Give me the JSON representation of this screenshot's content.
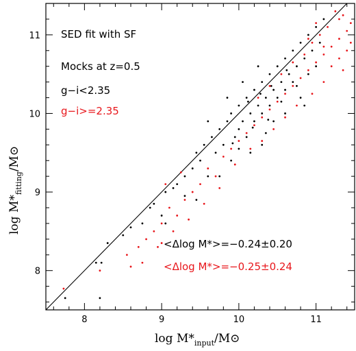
{
  "chart_data": {
    "type": "scatter",
    "xlabel": {
      "main": "log M*",
      "sub": "input",
      "tail": "/M⊙"
    },
    "ylabel": {
      "main": "log M*",
      "sub": "fitting",
      "tail": "/M⊙"
    },
    "xlim": [
      7.5,
      11.5
    ],
    "ylim": [
      7.5,
      11.4
    ],
    "xticks": [
      "8",
      "9",
      "10",
      "11"
    ],
    "yticks": [
      "8",
      "9",
      "10",
      "11"
    ],
    "one_to_one_line": true,
    "annotations": {
      "title": "SED fit with SF",
      "subtitle": "Mocks at z=0.5",
      "legend_black": "g−i<2.35",
      "legend_red": "g−i>=2.35",
      "stat_black": "<Δlog M*>=−0.24±0.20",
      "stat_red": "<Δlog M*>=−0.25±0.24"
    },
    "colors": {
      "black": "#000000",
      "red": "#e8161b"
    },
    "series": [
      {
        "name": "g−i<2.35",
        "color": "#000000",
        "points": [
          [
            7.75,
            7.65
          ],
          [
            8.2,
            7.65
          ],
          [
            8.15,
            8.1
          ],
          [
            8.22,
            8.1
          ],
          [
            8.3,
            8.35
          ],
          [
            8.5,
            8.45
          ],
          [
            8.6,
            8.55
          ],
          [
            8.75,
            8.6
          ],
          [
            8.9,
            8.85
          ],
          [
            9.0,
            8.7
          ],
          [
            9.05,
            9.0
          ],
          [
            9.2,
            9.1
          ],
          [
            9.3,
            9.2
          ],
          [
            9.4,
            9.3
          ],
          [
            9.45,
            8.9
          ],
          [
            9.5,
            9.4
          ],
          [
            9.55,
            9.6
          ],
          [
            9.6,
            9.2
          ],
          [
            9.65,
            9.7
          ],
          [
            9.7,
            9.5
          ],
          [
            9.75,
            9.8
          ],
          [
            9.8,
            9.6
          ],
          [
            9.85,
            9.9
          ],
          [
            9.9,
            10.0
          ],
          [
            9.95,
            9.7
          ],
          [
            10.0,
            10.1
          ],
          [
            10.0,
            9.8
          ],
          [
            10.05,
            9.9
          ],
          [
            10.1,
            10.2
          ],
          [
            10.1,
            9.7
          ],
          [
            10.15,
            10.0
          ],
          [
            10.2,
            10.3
          ],
          [
            10.2,
            9.9
          ],
          [
            10.25,
            10.1
          ],
          [
            10.3,
            10.4
          ],
          [
            10.3,
            10.0
          ],
          [
            10.35,
            10.2
          ],
          [
            10.4,
            10.5
          ],
          [
            10.4,
            10.1
          ],
          [
            10.45,
            10.3
          ],
          [
            10.5,
            10.6
          ],
          [
            10.5,
            10.2
          ],
          [
            10.55,
            10.4
          ],
          [
            10.6,
            10.7
          ],
          [
            10.6,
            10.3
          ],
          [
            10.65,
            10.5
          ],
          [
            10.7,
            10.8
          ],
          [
            10.7,
            10.4
          ],
          [
            10.75,
            10.6
          ],
          [
            10.8,
            10.9
          ],
          [
            10.85,
            10.7
          ],
          [
            10.9,
            11.0
          ],
          [
            10.9,
            10.5
          ],
          [
            10.95,
            10.8
          ],
          [
            11.0,
            11.1
          ],
          [
            11.05,
            10.9
          ],
          [
            11.1,
            11.2
          ],
          [
            10.15,
            9.5
          ],
          [
            9.9,
            9.4
          ],
          [
            10.3,
            9.6
          ],
          [
            9.75,
            9.2
          ],
          [
            10.45,
            9.9
          ],
          [
            10.6,
            10.0
          ],
          [
            10.8,
            10.2
          ],
          [
            9.85,
            10.2
          ],
          [
            10.05,
            10.4
          ],
          [
            10.25,
            10.6
          ],
          [
            9.6,
            9.9
          ],
          [
            9.45,
            9.5
          ],
          [
            10.0,
            9.55
          ],
          [
            10.35,
            9.75
          ],
          [
            10.55,
            10.15
          ],
          [
            10.75,
            10.35
          ],
          [
            10.12,
            10.15
          ],
          [
            10.28,
            10.25
          ],
          [
            10.42,
            10.35
          ],
          [
            10.62,
            10.55
          ],
          [
            10.18,
            9.82
          ],
          [
            10.38,
            9.92
          ],
          [
            9.92,
            9.62
          ],
          [
            9.05,
            8.6
          ],
          [
            9.3,
            8.95
          ],
          [
            8.85,
            8.8
          ],
          [
            9.15,
            9.05
          ],
          [
            10.85,
            10.1
          ],
          [
            11.0,
            10.6
          ]
        ]
      },
      {
        "name": "g−i>=2.35",
        "color": "#e8161b",
        "points": [
          [
            7.73,
            7.77
          ],
          [
            8.2,
            8.0
          ],
          [
            8.55,
            8.2
          ],
          [
            8.6,
            8.05
          ],
          [
            8.7,
            8.3
          ],
          [
            8.75,
            8.1
          ],
          [
            8.8,
            8.4
          ],
          [
            8.9,
            8.5
          ],
          [
            9.0,
            8.35
          ],
          [
            9.0,
            8.6
          ],
          [
            9.1,
            8.8
          ],
          [
            9.2,
            8.7
          ],
          [
            9.3,
            8.9
          ],
          [
            9.4,
            9.0
          ],
          [
            9.5,
            9.1
          ],
          [
            9.6,
            9.3
          ],
          [
            9.7,
            9.2
          ],
          [
            9.8,
            9.45
          ],
          [
            9.9,
            9.55
          ],
          [
            10.0,
            9.65
          ],
          [
            10.1,
            9.75
          ],
          [
            10.2,
            9.85
          ],
          [
            10.3,
            9.95
          ],
          [
            10.4,
            10.05
          ],
          [
            10.5,
            10.15
          ],
          [
            10.6,
            10.25
          ],
          [
            10.7,
            10.35
          ],
          [
            10.8,
            10.45
          ],
          [
            10.9,
            10.55
          ],
          [
            11.0,
            10.65
          ],
          [
            11.1,
            10.75
          ],
          [
            11.2,
            10.85
          ],
          [
            11.3,
            10.95
          ],
          [
            11.4,
            11.05
          ],
          [
            11.45,
            10.9
          ],
          [
            11.3,
            11.2
          ],
          [
            11.15,
            11.1
          ],
          [
            11.05,
            11.0
          ],
          [
            10.95,
            10.9
          ],
          [
            10.85,
            10.75
          ],
          [
            11.2,
            10.6
          ],
          [
            11.3,
            10.7
          ],
          [
            11.35,
            10.55
          ],
          [
            11.1,
            10.4
          ],
          [
            10.95,
            10.25
          ],
          [
            10.75,
            10.1
          ],
          [
            10.6,
            9.95
          ],
          [
            10.45,
            9.8
          ],
          [
            10.3,
            9.65
          ],
          [
            10.15,
            9.55
          ],
          [
            9.95,
            9.35
          ],
          [
            9.75,
            9.05
          ],
          [
            9.55,
            8.85
          ],
          [
            9.35,
            8.65
          ],
          [
            9.15,
            8.5
          ],
          [
            8.95,
            8.3
          ],
          [
            11.0,
            11.15
          ],
          [
            11.25,
            11.3
          ],
          [
            11.35,
            11.25
          ],
          [
            10.7,
            10.65
          ],
          [
            10.55,
            10.5
          ],
          [
            10.4,
            10.35
          ],
          [
            10.25,
            10.2
          ],
          [
            10.9,
            10.95
          ],
          [
            11.4,
            10.8
          ],
          [
            11.45,
            11.15
          ],
          [
            11.1,
            10.85
          ],
          [
            9.25,
            9.25
          ],
          [
            9.05,
            9.1
          ]
        ]
      }
    ]
  }
}
